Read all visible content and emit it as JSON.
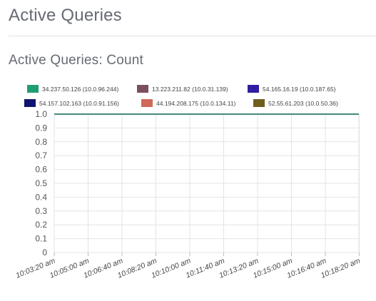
{
  "page": {
    "title": "Active Queries",
    "section_title": "Active Queries: Count"
  },
  "chart_data": {
    "type": "line",
    "title": "Active Queries: Count",
    "xlabel": "",
    "ylabel": "",
    "ylim": [
      0,
      1
    ],
    "yticks": [
      "0",
      "0.1",
      "0.2",
      "0.3",
      "0.4",
      "0.5",
      "0.6",
      "0.7",
      "0.8",
      "0.9",
      "1.0"
    ],
    "x": [
      "10:03:20 am",
      "10:05:00 am",
      "10:06:40 am",
      "10:08:20 am",
      "10:10:00 am",
      "10:11:40 am",
      "10:13:20 am",
      "10:15:00 am",
      "10:16:40 am",
      "10:18:20 am"
    ],
    "grid": true,
    "legend_position": "top",
    "series": [
      {
        "name": "34.237.50.126 (10.0.96.244)",
        "color": "#1f9e74",
        "values": [
          1,
          1,
          1,
          1,
          1,
          1,
          1,
          1,
          1,
          1
        ]
      },
      {
        "name": "13.223.211.82 (10.0.31.139)",
        "color": "#7b4f5e",
        "values": [
          1,
          1,
          1,
          1,
          1,
          1,
          1,
          1,
          1,
          1
        ]
      },
      {
        "name": "54.165.16.19 (10.0.187.65)",
        "color": "#2f1fa0",
        "values": [
          1,
          1,
          1,
          1,
          1,
          1,
          1,
          1,
          1,
          1
        ]
      },
      {
        "name": "54.157.102.163 (10.0.91.156)",
        "color": "#0f1470",
        "values": [
          1,
          1,
          1,
          1,
          1,
          1,
          1,
          1,
          1,
          1
        ]
      },
      {
        "name": "44.194.208.175 (10.0.134.11)",
        "color": "#cf6958",
        "values": [
          1,
          1,
          1,
          1,
          1,
          1,
          1,
          1,
          1,
          1
        ]
      },
      {
        "name": "52.55.61.203 (10.0.50.36)",
        "color": "#6f5d1e",
        "values": [
          1,
          1,
          1,
          1,
          1,
          1,
          1,
          1,
          1,
          1
        ]
      }
    ]
  }
}
